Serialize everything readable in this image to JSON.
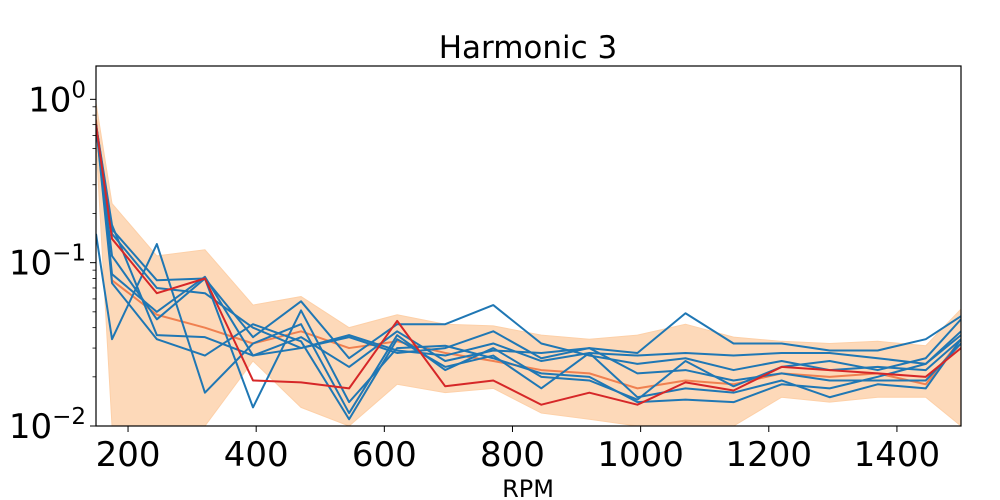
{
  "chart_data": {
    "type": "line",
    "title": "Harmonic 3",
    "xlabel": "RPM",
    "ylabel": "",
    "xlim": [
      150,
      1500
    ],
    "ylim": [
      0.01,
      1.6
    ],
    "yscale": "log",
    "grid": false,
    "legend": "none",
    "x_ticks": [
      {
        "value": 200,
        "label": "200"
      },
      {
        "value": 400,
        "label": "400"
      },
      {
        "value": 600,
        "label": "600"
      },
      {
        "value": 800,
        "label": "800"
      },
      {
        "value": 1000,
        "label": "1000"
      },
      {
        "value": 1200,
        "label": "1200"
      },
      {
        "value": 1400,
        "label": "1400"
      }
    ],
    "y_ticks": [
      {
        "value": 1,
        "base": "10",
        "exp": "0"
      },
      {
        "value": 0.1,
        "base": "10",
        "exp": "−1"
      },
      {
        "value": 0.01,
        "base": "10",
        "exp": "−2"
      }
    ],
    "x": [
      150,
      175,
      245,
      320,
      395,
      470,
      545,
      620,
      695,
      770,
      845,
      920,
      995,
      1070,
      1145,
      1220,
      1295,
      1370,
      1445,
      1500
    ],
    "band": {
      "color": "#fdd0a8",
      "upper": [
        0.95,
        0.23,
        0.11,
        0.12,
        0.055,
        0.062,
        0.04,
        0.048,
        0.042,
        0.041,
        0.036,
        0.034,
        0.036,
        0.042,
        0.035,
        0.033,
        0.032,
        0.033,
        0.031,
        0.052
      ],
      "lower": [
        0.55,
        0.01,
        0.01,
        0.01,
        0.025,
        0.013,
        0.01,
        0.018,
        0.016,
        0.017,
        0.012,
        0.011,
        0.01,
        0.01,
        0.01,
        0.015,
        0.014,
        0.015,
        0.015,
        0.01
      ]
    },
    "mean_line": {
      "color": "#f08050",
      "values": [
        0.75,
        0.078,
        0.048,
        0.04,
        0.032,
        0.038,
        0.03,
        0.033,
        0.028,
        0.025,
        0.022,
        0.021,
        0.017,
        0.019,
        0.018,
        0.021,
        0.02,
        0.021,
        0.018,
        0.034
      ]
    },
    "highlight_line": {
      "color": "#d62728",
      "values": [
        0.7,
        0.14,
        0.065,
        0.08,
        0.019,
        0.0185,
        0.017,
        0.044,
        0.0175,
        0.019,
        0.0135,
        0.016,
        0.0135,
        0.0185,
        0.0165,
        0.023,
        0.022,
        0.021,
        0.02,
        0.03
      ]
    },
    "series": [
      {
        "color": "#1f77b4",
        "values": [
          0.15,
          0.034,
          0.13,
          0.016,
          0.032,
          0.042,
          0.012,
          0.036,
          0.022,
          0.03,
          0.02,
          0.019,
          0.0145,
          0.025,
          0.0175,
          0.023,
          0.025,
          0.022,
          0.026,
          0.045
        ]
      },
      {
        "color": "#1f77b4",
        "values": [
          0.7,
          0.15,
          0.07,
          0.065,
          0.04,
          0.03,
          0.035,
          0.028,
          0.03,
          0.038,
          0.026,
          0.03,
          0.028,
          0.049,
          0.032,
          0.032,
          0.029,
          0.029,
          0.034,
          0.047
        ]
      },
      {
        "color": "#1f77b4",
        "values": [
          0.7,
          0.16,
          0.078,
          0.08,
          0.035,
          0.058,
          0.026,
          0.042,
          0.042,
          0.055,
          0.032,
          0.027,
          0.024,
          0.026,
          0.022,
          0.025,
          0.022,
          0.023,
          0.022,
          0.034
        ]
      },
      {
        "color": "#1f77b4",
        "values": [
          0.7,
          0.17,
          0.036,
          0.035,
          0.027,
          0.03,
          0.036,
          0.029,
          0.027,
          0.032,
          0.025,
          0.028,
          0.027,
          0.028,
          0.027,
          0.028,
          0.028,
          0.026,
          0.024,
          0.036
        ]
      },
      {
        "color": "#1f77b4",
        "values": [
          0.7,
          0.085,
          0.05,
          0.082,
          0.027,
          0.035,
          0.023,
          0.038,
          0.025,
          0.029,
          0.028,
          0.03,
          0.021,
          0.022,
          0.019,
          0.021,
          0.019,
          0.019,
          0.019,
          0.032
        ]
      },
      {
        "color": "#1f77b4",
        "values": [
          0.7,
          0.075,
          0.034,
          0.027,
          0.042,
          0.033,
          0.011,
          0.034,
          0.023,
          0.027,
          0.017,
          0.028,
          0.015,
          0.017,
          0.016,
          0.019,
          0.015,
          0.018,
          0.017,
          0.034
        ]
      },
      {
        "color": "#1f77b4",
        "values": [
          0.7,
          0.11,
          0.045,
          0.08,
          0.013,
          0.051,
          0.014,
          0.03,
          0.031,
          0.026,
          0.021,
          0.02,
          0.014,
          0.0145,
          0.014,
          0.018,
          0.017,
          0.02,
          0.024,
          0.038
        ]
      }
    ]
  }
}
